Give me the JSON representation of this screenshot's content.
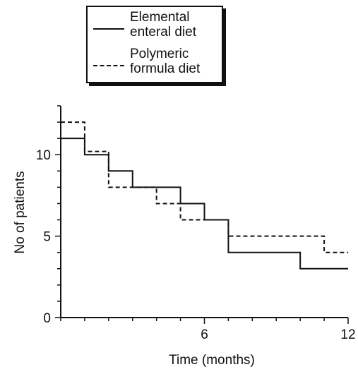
{
  "chart_data": {
    "type": "line",
    "step": true,
    "xlabel": "Time (months)",
    "ylabel": "No of patients",
    "xlim": [
      0,
      12
    ],
    "ylim": [
      0,
      13
    ],
    "xticks": [
      6,
      12
    ],
    "yticks": [
      0,
      5,
      10
    ],
    "legend_position": "top-center",
    "series": [
      {
        "name": "Elemental enteral diet",
        "line_style": "solid",
        "color": "#111111",
        "x": [
          0,
          1,
          2,
          3,
          5,
          6,
          7,
          10,
          12
        ],
        "y": [
          11,
          10,
          9,
          8,
          7,
          6,
          4,
          3,
          3
        ]
      },
      {
        "name": "Polymeric formula diet",
        "line_style": "dashed",
        "color": "#111111",
        "x": [
          0,
          1,
          2,
          4,
          5,
          7,
          11,
          12
        ],
        "y": [
          12,
          10.2,
          8,
          7,
          6,
          5,
          4,
          4
        ]
      }
    ]
  },
  "legend": {
    "items": [
      {
        "label_line1": "Elemental",
        "label_line2": "enteral diet"
      },
      {
        "label_line1": "Polymeric",
        "label_line2": "formula diet"
      }
    ]
  }
}
